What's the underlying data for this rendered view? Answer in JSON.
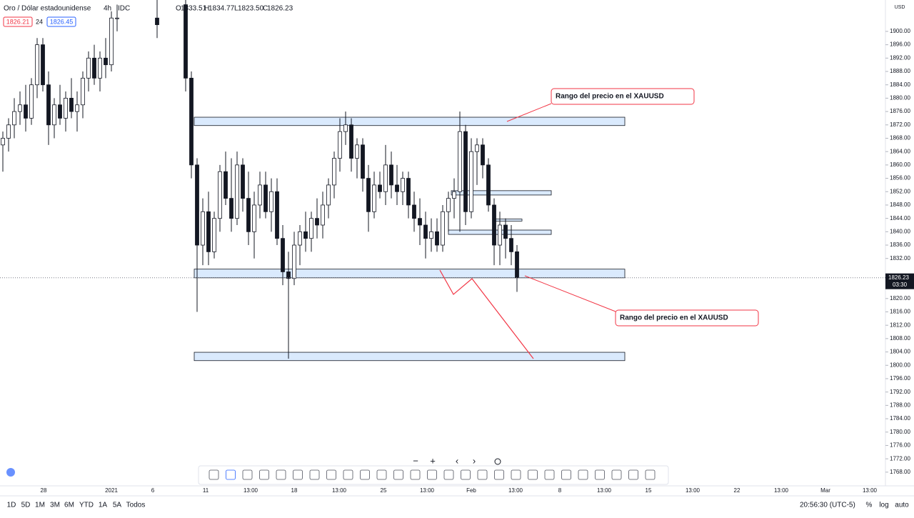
{
  "chart_data": {
    "type": "candlestick",
    "header": {
      "symbol": "Oro / Dólar estadounidense",
      "interval": "4h",
      "source": "IDC",
      "open_label": "O",
      "open": "1833.51",
      "high_label": "H",
      "high": "1834.77",
      "low_label": "L",
      "low": "1823.50",
      "close_label": "C",
      "close": "1826.23"
    },
    "pills": {
      "sell": "1826.21",
      "spread": "24",
      "buy": "1826.45"
    },
    "currency": "USD",
    "price_tag": {
      "value": 1826.23,
      "label": "1826.23",
      "timer": "03:30"
    },
    "annotations": [
      "Rango del precio en el XAUUSD",
      "Rango del precio en el XAUUSD"
    ],
    "zones": [
      [
        1874.3,
        1871.8
      ],
      [
        1852.3,
        1851.0
      ],
      [
        1843.8,
        1843.2
      ],
      [
        1840.5,
        1839.2
      ],
      [
        1828.8,
        1826.2
      ],
      [
        1803.9,
        1801.4
      ]
    ],
    "ylim": [
      1763.9,
      1909.4
    ],
    "yticks": [
      {
        "value": 1768,
        "label": "1768.00"
      },
      {
        "value": 1772,
        "label": "1772.00"
      },
      {
        "value": 1776,
        "label": "1776.00"
      },
      {
        "value": 1780,
        "label": "1780.00"
      },
      {
        "value": 1784,
        "label": "1784.00"
      },
      {
        "value": 1788,
        "label": "1788.00"
      },
      {
        "value": 1792,
        "label": "1792.00"
      },
      {
        "value": 1796,
        "label": "1796.00"
      },
      {
        "value": 1800,
        "label": "1800.00"
      },
      {
        "value": 1804,
        "label": "1804.00"
      },
      {
        "value": 1808,
        "label": "1808.00"
      },
      {
        "value": 1812,
        "label": "1812.00"
      },
      {
        "value": 1816,
        "label": "1816.00"
      },
      {
        "value": 1820,
        "label": "1820.00"
      },
      {
        "value": 1832,
        "label": "1832.00"
      },
      {
        "value": 1836,
        "label": "1836.00"
      },
      {
        "value": 1840,
        "label": "1840.00"
      },
      {
        "value": 1844,
        "label": "1844.00"
      },
      {
        "value": 1848,
        "label": "1848.00"
      },
      {
        "value": 1852,
        "label": "1852.00"
      },
      {
        "value": 1856,
        "label": "1856.00"
      },
      {
        "value": 1860,
        "label": "1860.00"
      },
      {
        "value": 1864,
        "label": "1864.00"
      },
      {
        "value": 1868,
        "label": "1868.00"
      },
      {
        "value": 1872,
        "label": "1872.00"
      },
      {
        "value": 1876,
        "label": "1876.00"
      },
      {
        "value": 1880,
        "label": "1880.00"
      },
      {
        "value": 1884,
        "label": "1884.00"
      },
      {
        "value": 1888,
        "label": "1888.00"
      },
      {
        "value": 1892,
        "label": "1892.00"
      },
      {
        "value": 1896,
        "label": "1896.00"
      },
      {
        "value": 1900,
        "label": "1900.00"
      }
    ],
    "xticks": [
      "28",
      "2021",
      "6",
      "11",
      "13:00",
      "18",
      "13:00",
      "25",
      "13:00",
      "Feb",
      "13:00",
      "8",
      "13:00",
      "15",
      "13:00",
      "22",
      "13:00",
      "Mar",
      "13:00"
    ],
    "candles": [
      [
        1866,
        1870,
        1858,
        1868
      ],
      [
        1868,
        1874,
        1864,
        1872
      ],
      [
        1872,
        1880,
        1868,
        1876
      ],
      [
        1876,
        1882,
        1872,
        1878
      ],
      [
        1878,
        1884,
        1870,
        1874
      ],
      [
        1874,
        1886,
        1872,
        1884
      ],
      [
        1884,
        1898,
        1880,
        1896
      ],
      [
        1896,
        1898,
        1882,
        1884
      ],
      [
        1884,
        1888,
        1866,
        1872
      ],
      [
        1872,
        1880,
        1868,
        1878
      ],
      [
        1878,
        1884,
        1872,
        1874
      ],
      [
        1874,
        1882,
        1870,
        1880
      ],
      [
        1880,
        1886,
        1874,
        1876
      ],
      [
        1876,
        1882,
        1870,
        1878
      ],
      [
        1878,
        1888,
        1874,
        1886
      ],
      [
        1886,
        1894,
        1882,
        1892
      ],
      [
        1892,
        1896,
        1884,
        1886
      ],
      [
        1886,
        1894,
        1882,
        1892
      ],
      [
        1892,
        1898,
        1886,
        1890
      ],
      [
        1890,
        1906,
        1888,
        1904
      ],
      [
        1904,
        1908,
        1900,
        1904
      ],
      null,
      null,
      null,
      null,
      null,
      null,
      [
        1904,
        1910,
        1898,
        1902
      ],
      null,
      null,
      null,
      null,
      [
        1908,
        1912,
        1882,
        1886
      ],
      [
        1886,
        1888,
        1856,
        1860
      ],
      [
        1860,
        1862,
        1816,
        1836
      ],
      [
        1836,
        1850,
        1830,
        1846
      ],
      [
        1846,
        1852,
        1830,
        1834
      ],
      [
        1834,
        1846,
        1832,
        1844
      ],
      [
        1844,
        1860,
        1840,
        1858
      ],
      [
        1858,
        1864,
        1848,
        1850
      ],
      [
        1850,
        1862,
        1840,
        1844
      ],
      [
        1844,
        1864,
        1842,
        1860
      ],
      [
        1860,
        1862,
        1846,
        1850
      ],
      [
        1850,
        1858,
        1836,
        1840
      ],
      [
        1840,
        1852,
        1832,
        1848
      ],
      [
        1848,
        1858,
        1844,
        1854
      ],
      [
        1854,
        1858,
        1844,
        1846
      ],
      [
        1846,
        1856,
        1840,
        1852
      ],
      [
        1852,
        1856,
        1836,
        1838
      ],
      [
        1838,
        1842,
        1824,
        1828
      ],
      [
        1828,
        1834,
        1802,
        1826
      ],
      [
        1826,
        1840,
        1824,
        1836
      ],
      [
        1836,
        1842,
        1830,
        1840
      ],
      [
        1840,
        1846,
        1834,
        1838
      ],
      [
        1838,
        1846,
        1834,
        1844
      ],
      [
        1844,
        1850,
        1838,
        1842
      ],
      [
        1842,
        1852,
        1838,
        1848
      ],
      [
        1848,
        1856,
        1844,
        1854
      ],
      [
        1854,
        1864,
        1850,
        1862
      ],
      [
        1862,
        1874,
        1858,
        1870
      ],
      [
        1870,
        1876,
        1866,
        1872
      ],
      [
        1872,
        1874,
        1858,
        1862
      ],
      [
        1862,
        1868,
        1856,
        1866
      ],
      [
        1866,
        1868,
        1852,
        1856
      ],
      [
        1856,
        1860,
        1840,
        1846
      ],
      [
        1846,
        1858,
        1844,
        1854
      ],
      [
        1854,
        1858,
        1850,
        1852
      ],
      [
        1852,
        1866,
        1848,
        1860
      ],
      [
        1860,
        1864,
        1850,
        1854
      ],
      [
        1854,
        1860,
        1848,
        1852
      ],
      [
        1852,
        1858,
        1848,
        1856
      ],
      [
        1856,
        1858,
        1844,
        1848
      ],
      [
        1848,
        1852,
        1840,
        1844
      ],
      [
        1844,
        1850,
        1836,
        1842
      ],
      [
        1842,
        1846,
        1832,
        1838
      ],
      [
        1838,
        1844,
        1834,
        1840
      ],
      [
        1840,
        1844,
        1834,
        1836
      ],
      [
        1836,
        1848,
        1834,
        1846
      ],
      [
        1846,
        1852,
        1840,
        1850
      ],
      [
        1850,
        1856,
        1844,
        1852
      ],
      [
        1852,
        1876,
        1840,
        1870
      ],
      [
        1870,
        1872,
        1842,
        1846
      ],
      [
        1846,
        1868,
        1844,
        1864
      ],
      [
        1864,
        1868,
        1854,
        1866
      ],
      [
        1866,
        1868,
        1856,
        1860
      ],
      [
        1860,
        1862,
        1846,
        1848
      ],
      [
        1848,
        1850,
        1830,
        1836
      ],
      [
        1836,
        1846,
        1830,
        1842
      ],
      [
        1842,
        1844,
        1832,
        1838
      ],
      [
        1838,
        1842,
        1830,
        1834
      ],
      [
        1834,
        1836,
        1822,
        1826.23
      ]
    ],
    "ranges": [
      "1D",
      "5D",
      "1M",
      "3M",
      "6M",
      "YTD",
      "1A",
      "5A",
      "Todos"
    ],
    "clock": "20:56:30 (UTC-5)",
    "scale_options": [
      "%",
      "log",
      "auto"
    ]
  }
}
